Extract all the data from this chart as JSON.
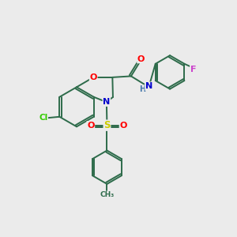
{
  "bg_color": "#ebebeb",
  "bond_color": "#2d6b4a",
  "atom_colors": {
    "O": "#ff0000",
    "N": "#0000cc",
    "S": "#cccc00",
    "Cl": "#33cc00",
    "F": "#cc44cc",
    "H": "#4477aa",
    "C": "#2d6b4a",
    "CH3": "#2d6b4a"
  },
  "lw": 1.4
}
